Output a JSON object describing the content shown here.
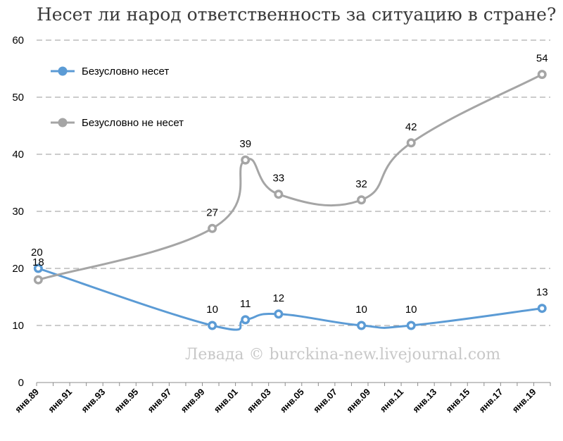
{
  "title": "Несет ли народ ответственность за ситуацию в стране?",
  "watermark": "Левада © burckina-new.livejournal.com",
  "chart_data": {
    "type": "line",
    "title": "Несет ли народ ответственность за ситуацию в стране?",
    "xlabel": "",
    "ylabel": "",
    "ylim": [
      0,
      60
    ],
    "yticks": [
      0,
      10,
      20,
      30,
      40,
      50,
      60
    ],
    "x_tick_labels": [
      "янв.89",
      "янв.91",
      "янв.93",
      "янв.95",
      "янв.97",
      "янв.99",
      "янв.01",
      "янв.03",
      "янв.05",
      "янв.07",
      "янв.09",
      "янв.11",
      "янв.13",
      "янв.15",
      "янв.17",
      "янв.19"
    ],
    "x_range": [
      1989.0,
      2020.0
    ],
    "grid": "horizontal dashed",
    "legend_position": "top-left",
    "series": [
      {
        "name": "Безусловно несет",
        "color": "#5b9bd5",
        "points": [
          {
            "x": 1989.1,
            "y": 20
          },
          {
            "x": 1999.6,
            "y": 10
          },
          {
            "x": 2001.6,
            "y": 11
          },
          {
            "x": 2003.6,
            "y": 12
          },
          {
            "x": 2008.6,
            "y": 10
          },
          {
            "x": 2011.6,
            "y": 10
          },
          {
            "x": 2019.5,
            "y": 13
          }
        ]
      },
      {
        "name": "Безусловно не несет",
        "color": "#a5a5a5",
        "points": [
          {
            "x": 1989.1,
            "y": 18
          },
          {
            "x": 1999.6,
            "y": 27
          },
          {
            "x": 2001.6,
            "y": 39
          },
          {
            "x": 2003.6,
            "y": 33
          },
          {
            "x": 2008.6,
            "y": 32
          },
          {
            "x": 2011.6,
            "y": 42
          },
          {
            "x": 2019.5,
            "y": 54
          }
        ]
      }
    ]
  }
}
